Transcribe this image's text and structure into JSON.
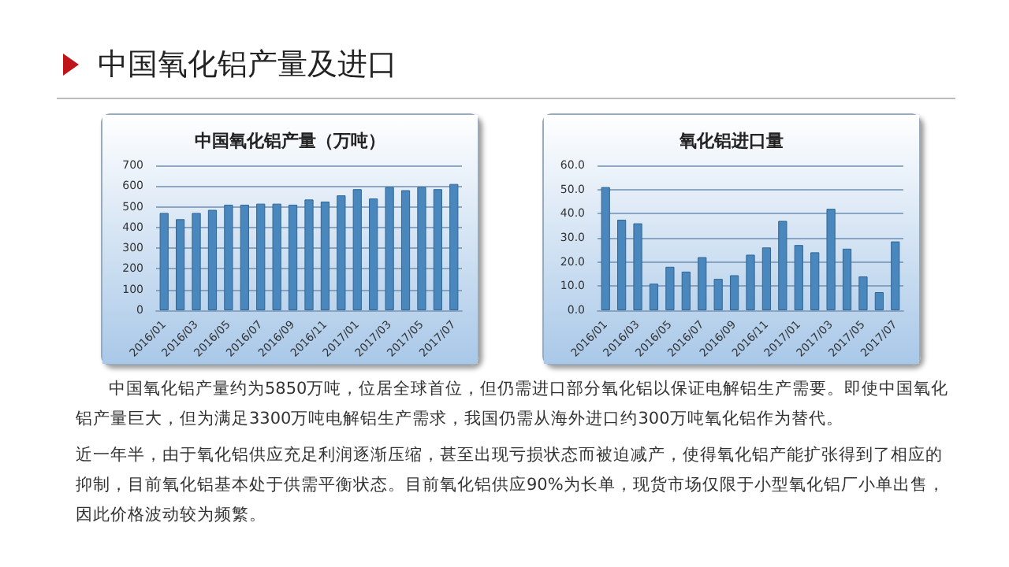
{
  "chart_data": [
    {
      "type": "other",
      "title": "中国氧化铝产量及进口",
      "annotations": [
        "中国氧化铝产量约为5850万吨，位居全球首位，但仍需进口部分氧化铝以保证电解铝生产需要。即使中国氧化铝产量巨大，但为满足3300万吨电解铝生产需求，我国仍需从海外进口约300万吨氧化铝作为替代。",
        "近一年半，由于氧化铝供应充足利润逐渐压缩，甚至出现亏损状态而被迫减产，使得氧化铝产能扩张得到了相应的抑制，目前氧化铝基本处于供需平衡状态。目前氧化铝供应90%为长单，现货市场仅限于小型氧化铝厂小单出售，因此价格波动较为频繁。"
      ]
    },
    {
      "type": "bar",
      "title": "中国氧化铝产量（万吨）",
      "categories": [
        "2016/01",
        null,
        "2016/03",
        null,
        "2016/05",
        null,
        "2016/07",
        null,
        "2016/09",
        null,
        "2016/11",
        null,
        "2017/01",
        null,
        "2017/03",
        null,
        "2017/05",
        null,
        "2017/07"
      ],
      "values": [
        470,
        440,
        470,
        485,
        510,
        510,
        515,
        515,
        510,
        535,
        525,
        555,
        585,
        540,
        595,
        580,
        595,
        585,
        610
      ],
      "color": "#4a87bd",
      "ylim": [
        0,
        700
      ],
      "yticks": [
        0,
        100,
        200,
        300,
        400,
        500,
        600,
        700
      ],
      "grid": "y"
    },
    {
      "type": "bar",
      "title": "氧化铝进口量",
      "categories": [
        "2016/01",
        null,
        "2016/03",
        null,
        "2016/05",
        null,
        "2016/07",
        null,
        "2016/09",
        null,
        "2016/11",
        null,
        "2017/01",
        null,
        "2017/03",
        null,
        "2017/05",
        null,
        "2017/07"
      ],
      "values": [
        51,
        37.5,
        36,
        11,
        18,
        16,
        22,
        13,
        14.5,
        23,
        26,
        37,
        27,
        24,
        42,
        25.5,
        14,
        7.5,
        28.5
      ],
      "color": "#4a87bd",
      "ylim": [
        0,
        60
      ],
      "yticks": [
        {
          "value": 0,
          "label": "0.0"
        },
        {
          "value": 10,
          "label": "10.0"
        },
        {
          "value": 20,
          "label": "20.0"
        },
        {
          "value": 30,
          "label": "30.0"
        },
        {
          "value": 40,
          "label": "40.0"
        },
        {
          "value": 50,
          "label": "50.0"
        },
        {
          "value": 60,
          "label": "60.0"
        }
      ],
      "grid": "y"
    }
  ]
}
